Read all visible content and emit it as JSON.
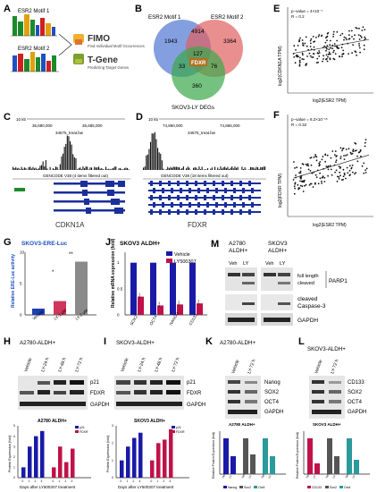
{
  "figure": {
    "panels": [
      "A",
      "B",
      "C",
      "D",
      "E",
      "F",
      "G",
      "H",
      "I",
      "J",
      "K",
      "L",
      "M"
    ],
    "A": {
      "motif1": "ESR2 Motif 1",
      "motif2": "ESR2 Motif 2",
      "fimo_title": "FIMO",
      "fimo_sub": "Find Individual Motif Occurrences",
      "tgene_title": "T-Gene",
      "tgene_sub": "Predicting Target Genes"
    },
    "B": {
      "set1": "ESR2 Motif 1",
      "set2": "ESR2 Motif 2",
      "set3": "SKOV3-LY DEGs",
      "regions": {
        "only1": "1943",
        "only2": "3364",
        "only3": "360",
        "i12": "4914",
        "i13": "33",
        "i23": "76",
        "i123": "127",
        "center_gene": "FDXR"
      },
      "colors": {
        "c1": "#5b7fd6",
        "c2": "#e06060",
        "c3": "#3aa84a"
      }
    },
    "C": {
      "scale": "10 kb",
      "pos1": "36,680,000",
      "pos2": "36,685,000",
      "track": "34675_treat.bw",
      "annotation": "GENCODE V38 (4 items filtered out)",
      "gene": "CDKN1A"
    },
    "D": {
      "scale": "10 kb",
      "pos1": "74,860,000",
      "pos2": "74,865,000",
      "track": "34675_treat.bw",
      "annotation": "GENCODE V38 (18 items filtered out)",
      "gene": "FDXR"
    },
    "E": {
      "stat_p": "p−value = 4×10⁻⁷",
      "stat_r": "R = 0.2",
      "xlabel": "log2(ESR2 TPM)",
      "ylabel": "log2(CDKN1A TPM)"
    },
    "F": {
      "stat_p": "p−value = 8.2×10⁻¹⁵",
      "stat_r": "R = 0.32",
      "xlabel": "log2(ESR2 TPM)",
      "ylabel": "log2(FDXR TPM)"
    },
    "G": {
      "title": "SKOV3-ERE-Luc",
      "ylabel": "Relative ERE-Luc activity",
      "sig1": "*",
      "sig2": "**"
    },
    "J": {
      "title": "SKOV3 ALDH+",
      "ylabel": "Relative mRNA expression (fold)",
      "legend": [
        "Vehicle",
        "LY500307"
      ],
      "sig": "****"
    },
    "M": {
      "col1": "A2780",
      "col1b": "ALDH+",
      "col2": "SKOV3",
      "col2b": "ALDH+",
      "lanes": [
        "Veh",
        "LY",
        "Veh",
        "LY"
      ],
      "rows": {
        "full": "full length",
        "cleaved": "cleaved",
        "parp": "PARP1",
        "casp1": "cleaved",
        "casp2": "Caspase-3",
        "gapdh": "GAPDH"
      }
    },
    "H": {
      "title": "A2780-ALDH+",
      "lanes": [
        "Vehicle",
        "LY-24 h",
        "LY-48 h",
        "LY-72 h"
      ],
      "bands": [
        "p21",
        "FDXR",
        "GAPDH"
      ],
      "plot_title": "A2780 ALDH+",
      "ylabel": "Protein Expression (fold)",
      "xlabel": "Days after LY500307 treatment",
      "legend": [
        "p21",
        "FDXR"
      ]
    },
    "I": {
      "title": "SKOV3-ALDH+",
      "lanes": [
        "Vehicle",
        "LY-24 h",
        "LY-48 h",
        "LY-72 h"
      ],
      "bands": [
        "p21",
        "FDXR",
        "GAPDH"
      ],
      "plot_title": "SKOV3 ALDH+",
      "ylabel": "Protein Expression (fold)",
      "xlabel": "Days after LY500307 treatment",
      "legend": [
        "p21",
        "FDXR"
      ]
    },
    "K": {
      "title": "A2780-ALDH+",
      "lanes": [
        "Vehicle",
        "LY-72 h"
      ],
      "bands": [
        "Nanog",
        "SOX2",
        "OCT4",
        "GAPDH"
      ],
      "plot_title": "A2780 ALDH+",
      "ylabel": "Relative Protein Expression (fold)",
      "legend": [
        "Nanog",
        "Sox2",
        "Oct4"
      ]
    },
    "L": {
      "title": "SKOV3-ALDH+",
      "lanes": [
        "Vehicle",
        "LY-72 h"
      ],
      "bands": [
        "CD133",
        "SOX2",
        "OCT4",
        "GAPDH"
      ],
      "plot_title": "SKOV3 ALDH+",
      "ylabel": "Relative Protein Expression (fold)",
      "legend": [
        "CD133",
        "Sox2",
        "Oct4"
      ]
    }
  },
  "chart_data": [
    {
      "type": "bar",
      "panel": "G",
      "title": "SKOV3-ERE-Luc",
      "ylabel": "Relative ERE-Luc activity",
      "categories": [
        "Vehicle",
        "LY-1 μM",
        "LY-2 μM"
      ],
      "values": [
        1,
        2.2,
        8.5
      ],
      "ylim": [
        0,
        10
      ],
      "colors": [
        "#1d3fb0",
        "#d0355a",
        "#8a8a8a"
      ]
    },
    {
      "type": "bar",
      "panel": "J",
      "title": "SKOV3 ALDH+",
      "ylabel": "Relative mRNA expression (fold)",
      "categories": [
        "SOX2",
        "OCT4",
        "NANOG",
        "CD133"
      ],
      "series": [
        {
          "name": "Vehicle",
          "values": [
            1,
            1,
            1,
            1
          ],
          "color": "#1a1aa8"
        },
        {
          "name": "LY500307",
          "values": [
            0.35,
            0.18,
            0.2,
            0.22
          ],
          "color": "#c0124a"
        }
      ],
      "ylim": [
        0,
        1.2
      ]
    },
    {
      "type": "bar",
      "panel": "H",
      "title": "A2780 ALDH+",
      "ylabel": "Protein Expression (fold)",
      "xlabel": "Days after LY500307 treatment",
      "categories": [
        "0",
        "1",
        "2",
        "3"
      ],
      "series": [
        {
          "name": "p21",
          "values": [
            1,
            3,
            4,
            4.5
          ],
          "color": "#1a1aa8"
        },
        {
          "name": "FDXR",
          "values": [
            1,
            3,
            1.5,
            2.8
          ],
          "color": "#c0124a"
        }
      ],
      "ylim": [
        0,
        5
      ]
    },
    {
      "type": "bar",
      "panel": "I",
      "title": "SKOV3 ALDH+",
      "ylabel": "Protein Expression (fold)",
      "xlabel": "Days after LY500307 treatment",
      "categories": [
        "0",
        "1",
        "2",
        "3"
      ],
      "series": [
        {
          "name": "p21",
          "values": [
            1,
            1.8,
            2.3,
            2.6
          ],
          "color": "#1a1aa8"
        },
        {
          "name": "FDXR",
          "values": [
            1,
            2,
            2.2,
            2.8
          ],
          "color": "#c0124a"
        }
      ],
      "ylim": [
        0,
        3
      ]
    },
    {
      "type": "bar",
      "panel": "K",
      "title": "A2780 ALDH+",
      "ylabel": "Relative Protein Expression (fold)",
      "categories": [
        "Veh",
        "LY"
      ],
      "series": [
        {
          "name": "Nanog",
          "values": [
            1,
            0.5
          ],
          "color": "#1a1aa8"
        },
        {
          "name": "Sox2",
          "values": [
            1,
            0.55
          ],
          "color": "#555555"
        },
        {
          "name": "Oct4",
          "values": [
            1,
            0.5
          ],
          "color": "#2a9a9a"
        }
      ],
      "ylim": [
        0,
        1.2
      ]
    },
    {
      "type": "bar",
      "panel": "L",
      "title": "SKOV3 ALDH+",
      "ylabel": "Relative Protein Expression (fold)",
      "categories": [
        "Veh",
        "LY"
      ],
      "series": [
        {
          "name": "CD133",
          "values": [
            1,
            0.3
          ],
          "color": "#c0124a"
        },
        {
          "name": "Sox2",
          "values": [
            1,
            0.5
          ],
          "color": "#555555"
        },
        {
          "name": "Oct4",
          "values": [
            1,
            0.4
          ],
          "color": "#2a9a9a"
        }
      ],
      "ylim": [
        0,
        1.2
      ]
    },
    {
      "type": "scatter",
      "panel": "E",
      "xlabel": "log2(ESR2 TPM)",
      "ylabel": "log2(CDKN1A TPM)",
      "xlim": [
        0,
        6
      ],
      "ylim": [
        0,
        10
      ],
      "trend": {
        "slope": 0.35,
        "intercept": 5.2
      }
    },
    {
      "type": "scatter",
      "panel": "F",
      "xlabel": "log2(ESR2 TPM)",
      "ylabel": "log2(FDXR TPM)",
      "xlim": [
        0,
        6
      ],
      "ylim": [
        0,
        10
      ],
      "trend": {
        "slope": 0.5,
        "intercept": 4.2
      }
    }
  ]
}
